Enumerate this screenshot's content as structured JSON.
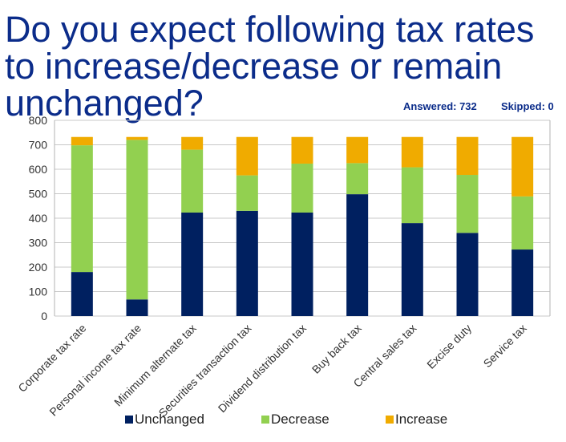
{
  "title": "Do you expect following tax rates to increase/decrease or remain unchanged?",
  "answered": "Answered: 732",
  "skipped": "Skipped: 0",
  "colors": {
    "unchanged": "#002060",
    "decrease": "#92d050",
    "increase": "#f0ab00",
    "grid": "#c8c8c8",
    "axis_text": "#333333",
    "title": "#0b2c8a"
  },
  "chart_data": {
    "type": "bar",
    "stacked": true,
    "title": "Do you expect following tax rates to increase/decrease or remain unchanged?",
    "xlabel": "",
    "ylabel": "",
    "ylim": [
      0,
      800
    ],
    "yticks": [
      0,
      100,
      200,
      300,
      400,
      500,
      600,
      700,
      800
    ],
    "grid": true,
    "legend_position": "bottom",
    "categories": [
      "Corporate tax rate",
      "Personal income tax rate",
      "Minimum alternate tax",
      "Securities transaction tax",
      "Dividend distribution tax",
      "Buy back tax",
      "Central sales tax",
      "Excise duty",
      "Service tax"
    ],
    "series": [
      {
        "name": "Unchanged",
        "color": "#002060",
        "values": [
          180,
          68,
          423,
          430,
          423,
          498,
          380,
          340,
          272
        ]
      },
      {
        "name": "Decrease",
        "color": "#92d050",
        "values": [
          518,
          652,
          257,
          145,
          200,
          127,
          228,
          237,
          217
        ]
      },
      {
        "name": "Increase",
        "color": "#f0ab00",
        "values": [
          34,
          12,
          52,
          157,
          109,
          107,
          124,
          155,
          243
        ]
      }
    ]
  }
}
